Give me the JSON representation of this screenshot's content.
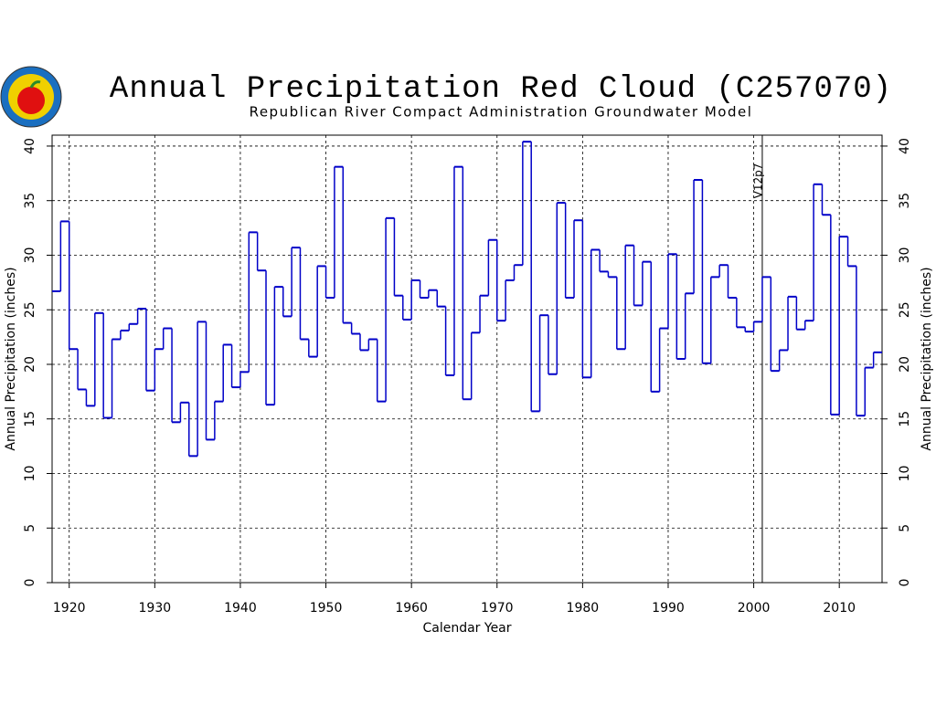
{
  "chart_data": {
    "type": "step",
    "title": "Annual Precipitation Red Cloud (C257070)",
    "subtitle": "Republican River Compact Administration Groundwater Model",
    "xlabel": "Calendar Year",
    "ylabel": "Annual Precipitation (inches)",
    "y2label": "Annual Precipitation (inches)",
    "color": "#0000c8",
    "xlim": [
      1918,
      2015
    ],
    "xticks": [
      1920,
      1930,
      1940,
      1950,
      1960,
      1970,
      1980,
      1990,
      2000,
      2010
    ],
    "ylim": [
      0,
      41
    ],
    "yticks": [
      0,
      5,
      10,
      15,
      20,
      25,
      30,
      35,
      40
    ],
    "y2lim": [
      0,
      41
    ],
    "y2ticks": [
      0,
      5,
      10,
      15,
      20,
      25,
      30,
      35,
      40
    ],
    "grid": true,
    "annotation": {
      "x": 2001,
      "text": "V12p7"
    },
    "x": [
      1918,
      1919,
      1920,
      1921,
      1922,
      1923,
      1924,
      1925,
      1926,
      1927,
      1928,
      1929,
      1930,
      1931,
      1932,
      1933,
      1934,
      1935,
      1936,
      1937,
      1938,
      1939,
      1940,
      1941,
      1942,
      1943,
      1944,
      1945,
      1946,
      1947,
      1948,
      1949,
      1950,
      1951,
      1952,
      1953,
      1954,
      1955,
      1956,
      1957,
      1958,
      1959,
      1960,
      1961,
      1962,
      1963,
      1964,
      1965,
      1966,
      1967,
      1968,
      1969,
      1970,
      1971,
      1972,
      1973,
      1974,
      1975,
      1976,
      1977,
      1978,
      1979,
      1980,
      1981,
      1982,
      1983,
      1984,
      1985,
      1986,
      1987,
      1988,
      1989,
      1990,
      1991,
      1992,
      1993,
      1994,
      1995,
      1996,
      1997,
      1998,
      1999,
      2000,
      2001,
      2002,
      2003,
      2004,
      2005,
      2006,
      2007,
      2008,
      2009,
      2010,
      2011,
      2012,
      2013,
      2014
    ],
    "values": [
      26.7,
      33.1,
      21.4,
      17.7,
      16.2,
      24.7,
      15.1,
      22.3,
      23.1,
      23.7,
      25.1,
      17.6,
      21.4,
      23.3,
      14.7,
      16.5,
      11.6,
      23.9,
      13.1,
      16.6,
      21.8,
      17.9,
      19.3,
      32.1,
      28.6,
      16.3,
      27.1,
      24.4,
      30.7,
      22.3,
      20.7,
      29.0,
      26.1,
      38.1,
      23.8,
      22.8,
      21.3,
      22.3,
      16.6,
      33.4,
      26.3,
      24.1,
      27.7,
      26.1,
      26.8,
      25.3,
      19.0,
      38.1,
      16.8,
      22.9,
      26.3,
      31.4,
      24.0,
      27.7,
      29.1,
      40.4,
      15.7,
      24.5,
      19.1,
      34.8,
      26.1,
      33.2,
      18.8,
      30.5,
      28.5,
      28.0,
      21.4,
      30.9,
      25.4,
      29.4,
      17.5,
      23.3,
      30.1,
      20.5,
      26.5,
      36.9,
      20.1,
      28.0,
      29.1,
      26.1,
      23.4,
      23.0,
      23.9,
      28.0,
      19.4,
      21.3,
      26.2,
      23.2,
      24.0,
      36.5,
      33.7,
      15.4,
      31.7,
      29.0,
      15.3,
      19.7,
      21.1
    ]
  }
}
